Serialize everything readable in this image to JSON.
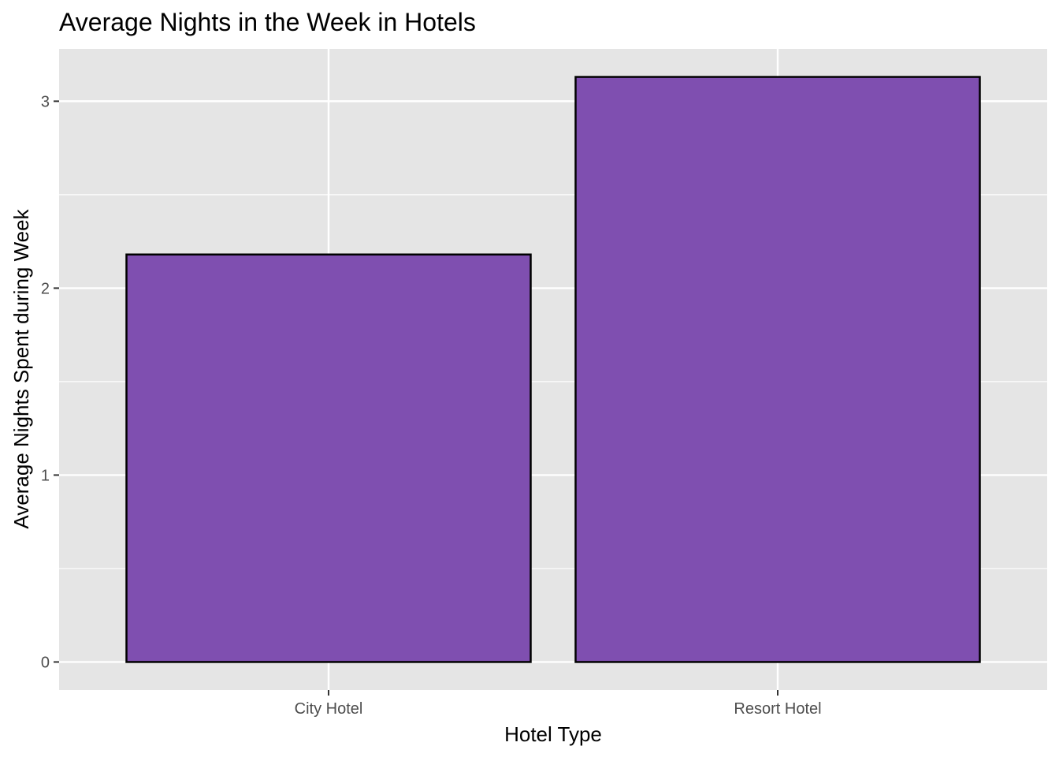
{
  "chart_data": {
    "type": "bar",
    "title": "Average Nights in the Week in Hotels",
    "xlabel": "Hotel Type",
    "ylabel": "Average Nights Spent during Week",
    "categories": [
      "City Hotel",
      "Resort Hotel"
    ],
    "values": [
      2.18,
      3.13
    ],
    "ylim": [
      -0.15,
      3.28
    ],
    "yticks": [
      0,
      1,
      2,
      3
    ],
    "yticks_minor": [
      0.5,
      1.5,
      2.5
    ],
    "ytick_labels": [
      "0",
      "1",
      "2",
      "3"
    ],
    "grid": true,
    "legend": "none",
    "colors": {
      "bar_fill": "#7f4fb0",
      "bar_outline": "#000000",
      "panel_background": "#e5e5e5",
      "gridline": "#ffffff"
    }
  }
}
